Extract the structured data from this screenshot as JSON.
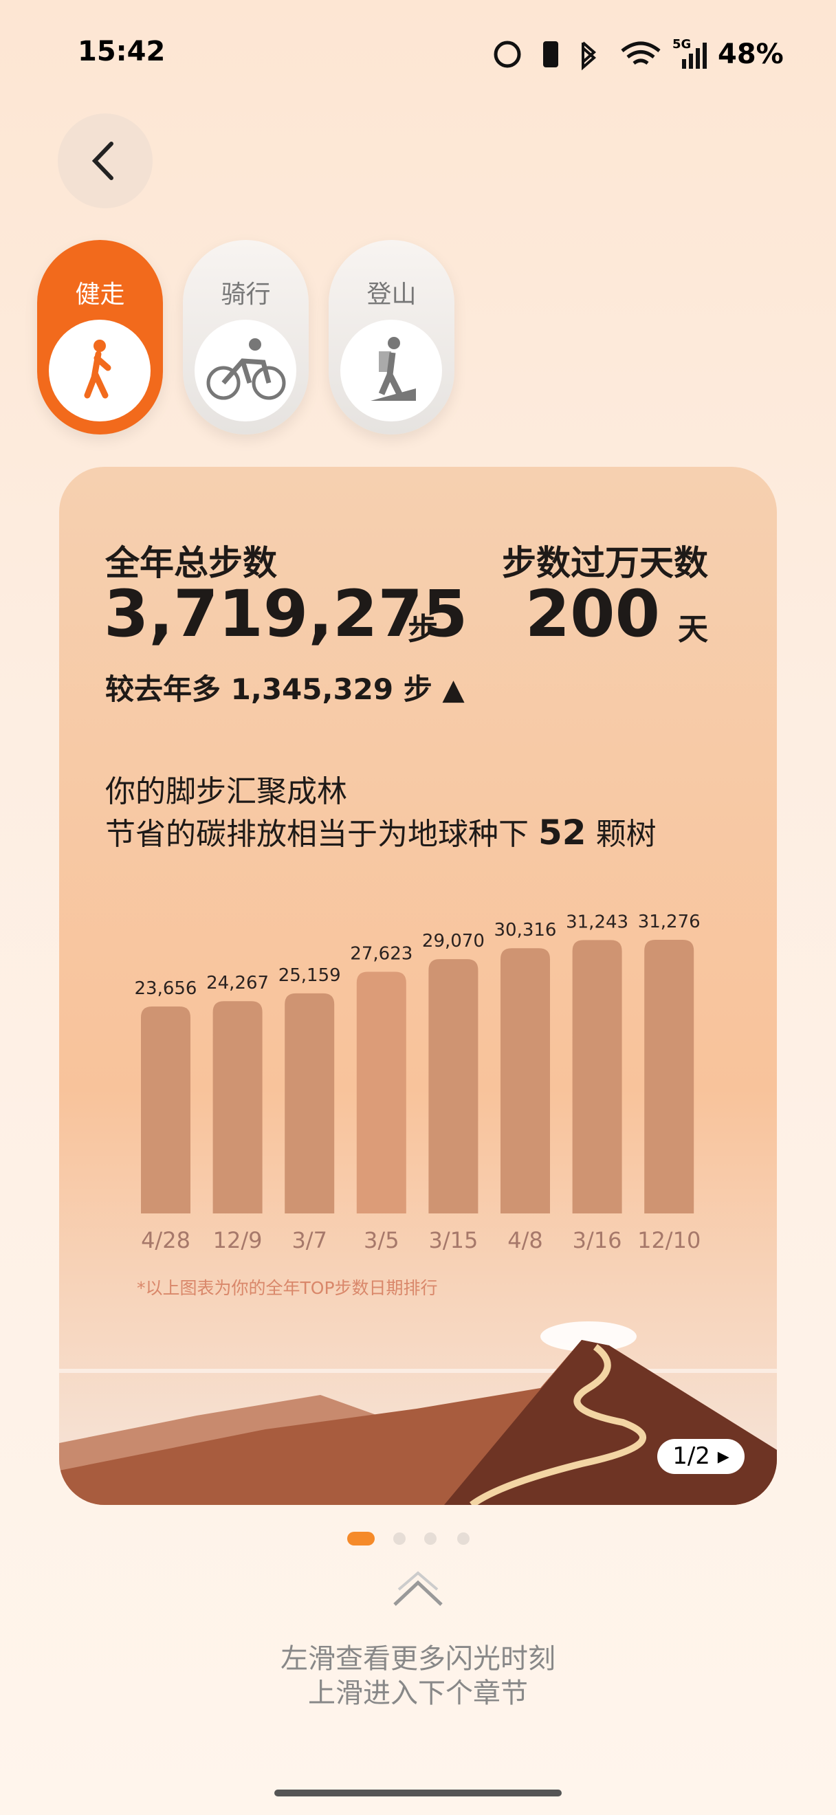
{
  "status_bar": {
    "time": "15:42",
    "network": "5G",
    "battery": "48%"
  },
  "tabs": [
    {
      "label": "健走",
      "active": true
    },
    {
      "label": "骑行",
      "active": false
    },
    {
      "label": "登山",
      "active": false
    }
  ],
  "card": {
    "total_label": "全年总步数",
    "total_value": "3,719,275",
    "total_unit": "步",
    "days_label": "步数过万天数",
    "days_value": "200",
    "days_unit": "天",
    "compare_prefix": "较去年多",
    "compare_value": "1,345,329",
    "compare_unit": "步",
    "compare_arrow": "▲",
    "line1": "你的脚步汇聚成林",
    "line2_prefix": "节省的碳排放相当于为地球种下",
    "line2_value": "52",
    "line2_unit": "颗树",
    "footnote": "*以上图表为你的全年TOP步数日期排行",
    "pager": "1/2"
  },
  "bar_chart": {
    "type": "bar",
    "categories": [
      "4/28",
      "12/9",
      "3/7",
      "3/5",
      "3/15",
      "4/8",
      "3/16",
      "12/10"
    ],
    "values": [
      23656,
      24267,
      25159,
      27623,
      29070,
      30316,
      31243,
      31276
    ],
    "value_labels": [
      "23,656",
      "24,267",
      "25,159",
      "27,623",
      "29,070",
      "30,316",
      "31,243",
      "31,276"
    ],
    "color": "#cf9472",
    "highlight_color": "#dc9c78",
    "highlight_index": 3
  },
  "hint": {
    "line1": "左滑查看更多闪光时刻",
    "line2": "上滑进入下个章节"
  }
}
